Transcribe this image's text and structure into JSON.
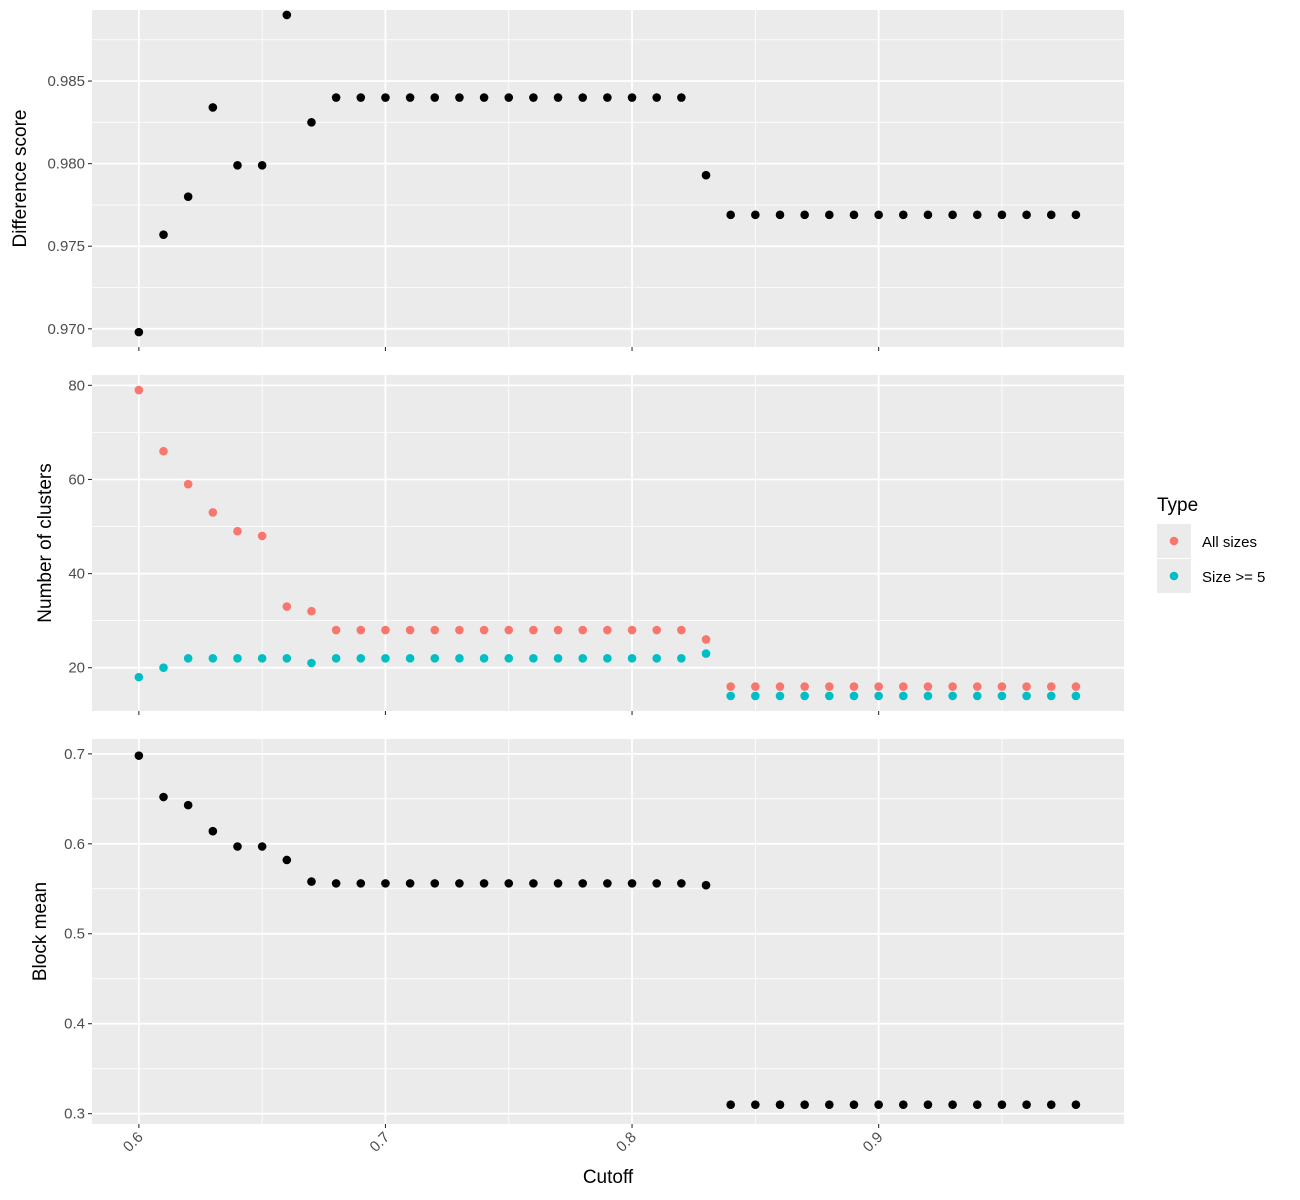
{
  "chart_data": {
    "type": "scatter",
    "xlabel": "Cutoff",
    "x_ticks": [
      "0.6",
      "0.7",
      "0.8",
      "0.9"
    ],
    "x_tick_values": [
      0.6,
      0.7,
      0.8,
      0.9
    ],
    "xlim": [
      0.581,
      0.9995
    ],
    "x": [
      0.6,
      0.61,
      0.62,
      0.63,
      0.64,
      0.65,
      0.66,
      0.67,
      0.68,
      0.69,
      0.7,
      0.71,
      0.72,
      0.73,
      0.74,
      0.75,
      0.76,
      0.77,
      0.78,
      0.79,
      0.8,
      0.81,
      0.82,
      0.83,
      0.84,
      0.85,
      0.86,
      0.87,
      0.88,
      0.89,
      0.9,
      0.91,
      0.92,
      0.93,
      0.94,
      0.95,
      0.96,
      0.97,
      0.98
    ],
    "panels": [
      {
        "ylabel": "Difference score",
        "ylim": [
          0.9689,
          0.9893
        ],
        "y_ticks": [
          "0.970",
          "0.975",
          "0.980",
          "0.985"
        ],
        "y_tick_values": [
          0.97,
          0.975,
          0.98,
          0.985
        ],
        "series": [
          {
            "color": "#000000",
            "values": [
              0.9698,
              0.9757,
              0.978,
              0.9834,
              0.9799,
              0.9799,
              0.989,
              0.9825,
              0.984,
              0.984,
              0.984,
              0.984,
              0.984,
              0.984,
              0.984,
              0.984,
              0.984,
              0.984,
              0.984,
              0.984,
              0.984,
              0.984,
              0.984,
              0.9793,
              0.9769,
              0.9769,
              0.9769,
              0.9769,
              0.9769,
              0.9769,
              0.9769,
              0.9769,
              0.9769,
              0.9769,
              0.9769,
              0.9769,
              0.9769,
              0.9769,
              0.9769
            ]
          }
        ]
      },
      {
        "ylabel": "Number of clusters",
        "ylim": [
          10.8,
          82.2
        ],
        "y_ticks": [
          "20",
          "40",
          "60",
          "80"
        ],
        "y_tick_values": [
          20,
          40,
          60,
          80
        ],
        "series": [
          {
            "name": "All sizes",
            "color": "#F8766D",
            "values": [
              79,
              66,
              59,
              53,
              49,
              48,
              33,
              32,
              28,
              28,
              28,
              28,
              28,
              28,
              28,
              28,
              28,
              28,
              28,
              28,
              28,
              28,
              28,
              26,
              16,
              16,
              16,
              16,
              16,
              16,
              16,
              16,
              16,
              16,
              16,
              16,
              16,
              16,
              16
            ]
          },
          {
            "name": "Size >= 5",
            "color": "#00BFC4",
            "values": [
              18,
              20,
              22,
              22,
              22,
              22,
              22,
              21,
              22,
              22,
              22,
              22,
              22,
              22,
              22,
              22,
              22,
              22,
              22,
              22,
              22,
              22,
              22,
              23,
              14,
              14,
              14,
              14,
              14,
              14,
              14,
              14,
              14,
              14,
              14,
              14,
              14,
              14,
              14
            ]
          }
        ]
      },
      {
        "ylabel": "Block mean",
        "ylim": [
          0.2885,
          0.7165
        ],
        "y_ticks": [
          "0.3",
          "0.4",
          "0.5",
          "0.6",
          "0.7"
        ],
        "y_tick_values": [
          0.3,
          0.4,
          0.5,
          0.6,
          0.7
        ],
        "series": [
          {
            "color": "#000000",
            "values": [
              0.698,
              0.652,
              0.643,
              0.614,
              0.597,
              0.597,
              0.582,
              0.558,
              0.556,
              0.556,
              0.556,
              0.556,
              0.556,
              0.556,
              0.556,
              0.556,
              0.556,
              0.556,
              0.556,
              0.556,
              0.556,
              0.556,
              0.556,
              0.554,
              0.31,
              0.31,
              0.31,
              0.31,
              0.31,
              0.31,
              0.31,
              0.31,
              0.31,
              0.31,
              0.31,
              0.31,
              0.31,
              0.31,
              0.31
            ]
          }
        ]
      }
    ],
    "legend": {
      "title": "Type",
      "position": "right",
      "entries": [
        {
          "label": "All sizes",
          "color": "#F8766D"
        },
        {
          "label": "Size >= 5",
          "color": "#00BFC4"
        }
      ]
    },
    "grid": true
  }
}
